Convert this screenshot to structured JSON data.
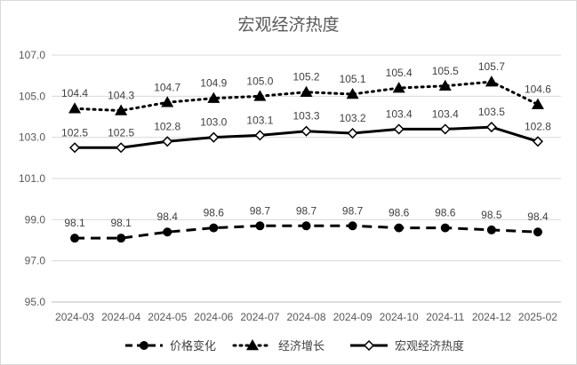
{
  "chart_data": {
    "type": "line",
    "title": "宏观经济热度",
    "xlabel": "",
    "ylabel": "",
    "ylim": [
      95.0,
      107.0
    ],
    "yticks": [
      "95.0",
      "97.0",
      "99.0",
      "101.0",
      "103.0",
      "105.0",
      "107.0"
    ],
    "grid": true,
    "legend": "bottom",
    "categories": [
      "2024-03",
      "2024-04",
      "2024-05",
      "2024-06",
      "2024-07",
      "2024-08",
      "2024-09",
      "2024-10",
      "2024-11",
      "2024-12",
      "2025-02"
    ],
    "series": [
      {
        "name": "价格变化",
        "style": "dashed",
        "marker": "circle",
        "color": "#000000",
        "values": [
          98.1,
          98.1,
          98.4,
          98.6,
          98.7,
          98.7,
          98.7,
          98.6,
          98.6,
          98.5,
          98.4
        ]
      },
      {
        "name": "经济增长",
        "style": "dotted",
        "marker": "triangle",
        "color": "#000000",
        "values": [
          104.4,
          104.3,
          104.7,
          104.9,
          105.0,
          105.2,
          105.1,
          105.4,
          105.5,
          105.7,
          104.6
        ]
      },
      {
        "name": "宏观经济热度",
        "style": "solid",
        "marker": "diamond",
        "color": "#000000",
        "values": [
          102.5,
          102.5,
          102.8,
          103.0,
          103.1,
          103.3,
          103.2,
          103.4,
          103.4,
          103.5,
          102.8
        ]
      }
    ]
  }
}
